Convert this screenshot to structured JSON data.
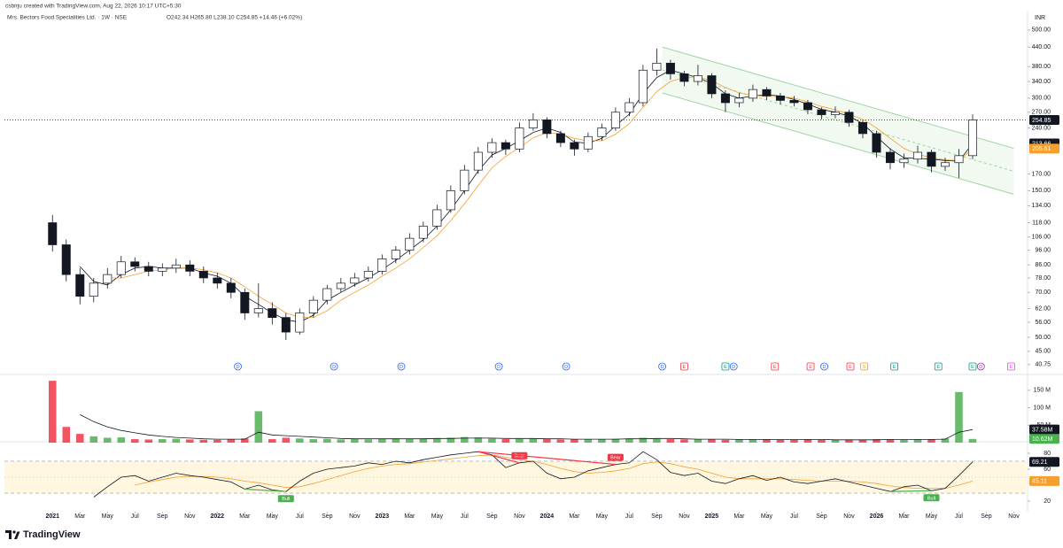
{
  "header": {
    "author": "csbirju created with TradingView.com, Aug 22, 2026 10:17 UTC+5:30",
    "symbol": "Mrs. Bectors Food Specialities Ltd. · 1W · NSE",
    "ohlc": "O242.34 H265.80 L238.10 C254.85 +14.46 (+6.02%)"
  },
  "footer": {
    "brand": "TradingView"
  },
  "chart_data": [
    {
      "type": "candlestick",
      "currency": "INR",
      "log_scale": true,
      "xlim": [
        -3.5,
        71
      ],
      "ylim": [
        38.6,
        541
      ],
      "x": [
        0,
        1,
        2,
        3,
        4,
        5,
        6,
        7,
        8,
        9,
        10,
        11,
        12,
        13,
        14,
        15,
        16,
        17,
        18,
        19,
        20,
        21,
        22,
        23,
        24,
        25,
        26,
        27,
        28,
        29,
        30,
        31,
        32,
        33,
        34,
        35,
        36,
        37,
        38,
        39,
        40,
        41,
        42,
        43,
        44,
        45,
        46,
        47,
        48,
        49,
        50,
        51,
        52,
        53,
        54,
        55,
        56,
        57,
        58,
        59,
        60,
        61,
        62,
        63,
        64,
        65,
        66,
        67
      ],
      "open": [
        118,
        100,
        80,
        68,
        75,
        80,
        88,
        85,
        82,
        84,
        86,
        82,
        78,
        75,
        70,
        60,
        62,
        58,
        52,
        60,
        66,
        72,
        75,
        78,
        82,
        90,
        96,
        105,
        115,
        130,
        150,
        175,
        200,
        215,
        205,
        240,
        255,
        230,
        215,
        205,
        225,
        240,
        270,
        290,
        370,
        390,
        360,
        340,
        355,
        310,
        290,
        300,
        320,
        305,
        295,
        290,
        275,
        265,
        270,
        250,
        230,
        200,
        185,
        190,
        200,
        180,
        185,
        195
      ],
      "high": [
        125,
        104,
        84,
        78,
        84,
        92,
        91,
        88,
        87,
        90,
        89,
        85,
        81,
        78,
        72,
        75,
        65,
        60,
        62,
        68,
        74,
        78,
        81,
        85,
        93,
        99,
        109,
        119,
        135,
        156,
        182,
        208,
        222,
        220,
        250,
        268,
        260,
        235,
        220,
        232,
        248,
        280,
        300,
        385,
        435,
        400,
        368,
        385,
        362,
        318,
        312,
        332,
        326,
        312,
        305,
        296,
        280,
        282,
        275,
        255,
        235,
        206,
        198,
        210,
        204,
        192,
        205,
        265.8
      ],
      "low": [
        95,
        76,
        64,
        65,
        72,
        78,
        82,
        79,
        79,
        81,
        79,
        75,
        72,
        67,
        57,
        58,
        55,
        49,
        51,
        58,
        64,
        70,
        73,
        76,
        80,
        87,
        93,
        102,
        112,
        127,
        146,
        170,
        192,
        196,
        200,
        235,
        222,
        208,
        195,
        200,
        218,
        235,
        262,
        282,
        355,
        345,
        328,
        330,
        300,
        270,
        280,
        292,
        296,
        286,
        282,
        266,
        256,
        258,
        242,
        222,
        192,
        176,
        178,
        184,
        172,
        174,
        165,
        190
      ],
      "close": [
        100,
        80,
        68,
        75,
        80,
        88,
        85,
        82,
        84,
        86,
        82,
        78,
        75,
        70,
        60,
        62,
        58,
        52,
        60,
        66,
        72,
        75,
        78,
        82,
        90,
        96,
        105,
        115,
        130,
        150,
        175,
        200,
        215,
        205,
        240,
        255,
        230,
        215,
        205,
        225,
        240,
        270,
        290,
        370,
        390,
        360,
        340,
        355,
        310,
        290,
        300,
        320,
        305,
        295,
        290,
        275,
        265,
        270,
        250,
        230,
        200,
        185,
        190,
        200,
        180,
        185,
        195,
        254.85
      ],
      "up_color": "#ffffff",
      "down_color": "#131722",
      "border_color": "#131722",
      "last_color": "#131722",
      "series": [
        {
          "color": "#131722",
          "values": [
            null,
            null,
            85,
            76,
            74,
            80,
            84,
            85,
            84,
            84,
            84,
            81,
            79,
            75,
            68,
            64,
            60,
            57,
            56,
            59,
            66,
            70,
            74,
            78,
            83,
            89,
            96,
            104,
            115,
            130,
            150,
            174,
            196,
            206,
            218,
            232,
            240,
            232,
            216,
            214,
            222,
            244,
            266,
            310,
            350,
            370,
            360,
            350,
            335,
            310,
            300,
            305,
            308,
            305,
            297,
            287,
            276,
            270,
            262,
            248,
            225,
            205,
            192,
            191,
            190,
            188,
            187,
            213.66
          ]
        },
        {
          "color": "#f59f2f",
          "values": [
            null,
            null,
            null,
            null,
            78,
            78,
            80,
            82,
            83,
            84,
            84,
            83,
            81,
            78,
            73,
            68,
            64,
            60,
            58,
            58,
            61,
            66,
            70,
            74,
            79,
            84,
            90,
            98,
            107,
            120,
            136,
            156,
            178,
            194,
            207,
            223,
            232,
            229,
            222,
            218,
            218,
            229,
            248,
            280,
            315,
            340,
            350,
            352,
            342,
            325,
            312,
            306,
            304,
            304,
            300,
            292,
            282,
            275,
            266,
            256,
            240,
            222,
            206,
            197,
            192,
            189,
            188,
            205.61
          ]
        }
      ],
      "channel": {
        "color": "#4caf50",
        "x": [
          44.4,
          70
        ],
        "upper": [
          440,
          206
        ],
        "lower": [
          312,
          146
        ]
      },
      "yticks": [
        {
          "value": 500,
          "label": "500.00"
        },
        {
          "value": 440,
          "label": "440.00"
        },
        {
          "value": 380,
          "label": "380.00"
        },
        {
          "value": 340,
          "label": "340.00"
        },
        {
          "value": 300,
          "label": "300.00"
        },
        {
          "value": 270,
          "label": "270.00"
        },
        {
          "value": 240,
          "label": "240.00"
        },
        {
          "value": 170,
          "label": "170.00"
        },
        {
          "value": 150,
          "label": "150.00"
        },
        {
          "value": 134,
          "label": "134.00"
        },
        {
          "value": 118,
          "label": "118.00"
        },
        {
          "value": 106,
          "label": "106.00"
        },
        {
          "value": 96,
          "label": "96.00"
        },
        {
          "value": 86,
          "label": "86.00"
        },
        {
          "value": 78,
          "label": "78.00"
        },
        {
          "value": 70,
          "label": "70.00"
        },
        {
          "value": 62,
          "label": "62.00"
        },
        {
          "value": 56,
          "label": "56.00"
        },
        {
          "value": 50,
          "label": "50.00"
        },
        {
          "value": 45,
          "label": "45.00"
        },
        {
          "value": 40.75,
          "label": "40.75"
        }
      ],
      "xticks": [
        {
          "value": 0,
          "label": "2021"
        },
        {
          "value": 2,
          "label": "Mar"
        },
        {
          "value": 4,
          "label": "May"
        },
        {
          "value": 6,
          "label": "Jul"
        },
        {
          "value": 8,
          "label": "Sep"
        },
        {
          "value": 10,
          "label": "Nov"
        },
        {
          "value": 12,
          "label": "2022"
        },
        {
          "value": 14,
          "label": "Mar"
        },
        {
          "value": 16,
          "label": "May"
        },
        {
          "value": 18,
          "label": "Jul"
        },
        {
          "value": 20,
          "label": "Sep"
        },
        {
          "value": 22,
          "label": "Nov"
        },
        {
          "value": 24,
          "label": "2023"
        },
        {
          "value": 26,
          "label": "Mar"
        },
        {
          "value": 28,
          "label": "May"
        },
        {
          "value": 30,
          "label": "Jul"
        },
        {
          "value": 32,
          "label": "Sep"
        },
        {
          "value": 34,
          "label": "Nov"
        },
        {
          "value": 36,
          "label": "2024"
        },
        {
          "value": 38,
          "label": "Mar"
        },
        {
          "value": 40,
          "label": "May"
        },
        {
          "value": 42,
          "label": "Jul"
        },
        {
          "value": 44,
          "label": "Sep"
        },
        {
          "value": 46,
          "label": "Nov"
        },
        {
          "value": 48,
          "label": "2025"
        },
        {
          "value": 50,
          "label": "Mar"
        },
        {
          "value": 52,
          "label": "May"
        },
        {
          "value": 54,
          "label": "Jul"
        },
        {
          "value": 56,
          "label": "Sep"
        },
        {
          "value": 58,
          "label": "Nov"
        },
        {
          "value": 60,
          "label": "2026"
        },
        {
          "value": 62,
          "label": "Mar"
        },
        {
          "value": 64,
          "label": "May"
        },
        {
          "value": 66,
          "label": "Jul"
        },
        {
          "value": 68,
          "label": "Sep"
        },
        {
          "value": 70,
          "label": "Nov"
        }
      ],
      "events": [
        {
          "x": 13.5,
          "label": "D",
          "color": "#2962ff"
        },
        {
          "x": 20.5,
          "label": "D",
          "color": "#2962ff"
        },
        {
          "x": 25.4,
          "label": "D",
          "color": "#2962ff"
        },
        {
          "x": 32.5,
          "label": "D",
          "color": "#2962ff"
        },
        {
          "x": 37.4,
          "label": "D",
          "color": "#2962ff"
        },
        {
          "x": 44.4,
          "label": "D",
          "color": "#2962ff"
        },
        {
          "x": 46.0,
          "label": "E",
          "color": "#f23645"
        },
        {
          "x": 49.0,
          "label": "E",
          "color": "#089981"
        },
        {
          "x": 49.6,
          "label": "D",
          "color": "#2962ff"
        },
        {
          "x": 52.6,
          "label": "E",
          "color": "#f23645"
        },
        {
          "x": 55.2,
          "label": "E",
          "color": "#f23645"
        },
        {
          "x": 56.2,
          "label": "D",
          "color": "#2962ff"
        },
        {
          "x": 58.1,
          "label": "E",
          "color": "#f23645"
        },
        {
          "x": 59.1,
          "label": "S",
          "color": "#ff9800"
        },
        {
          "x": 61.3,
          "label": "E",
          "color": "#089981"
        },
        {
          "x": 64.5,
          "label": "E",
          "color": "#089981"
        },
        {
          "x": 67.0,
          "label": "E",
          "color": "#089981"
        },
        {
          "x": 67.6,
          "label": "D",
          "color": "#9c27b0"
        },
        {
          "x": 69.8,
          "label": "E",
          "color": "#e040fb"
        }
      ]
    },
    {
      "type": "bar",
      "ylim": [
        0,
        190
      ],
      "up_color": "#4caf50",
      "down_color": "#f23645",
      "values": [
        177,
        45,
        25,
        18,
        14,
        15,
        10,
        9,
        10,
        11,
        9,
        8,
        8,
        9,
        12,
        90,
        10,
        14,
        12,
        10,
        11,
        9,
        10,
        9,
        11,
        12,
        10,
        12,
        13,
        14,
        16,
        15,
        12,
        10,
        11,
        12,
        10,
        9,
        10,
        9,
        10,
        11,
        12,
        14,
        12,
        10,
        9,
        10,
        9,
        8,
        9,
        10,
        9,
        8,
        8,
        9,
        8,
        8,
        9,
        8,
        10,
        9,
        8,
        9,
        10,
        12,
        145,
        10.62
      ],
      "ma": {
        "color": "#131722",
        "values": [
          null,
          null,
          80,
          60,
          45,
          35,
          28,
          22,
          18,
          15,
          13,
          11,
          10,
          10,
          10,
          30,
          22,
          20,
          18,
          16,
          14,
          12,
          11,
          11,
          11,
          11,
          11,
          11,
          12,
          12,
          13,
          13,
          13,
          12,
          12,
          12,
          11,
          11,
          10,
          10,
          10,
          10,
          11,
          11,
          12,
          12,
          11,
          10,
          10,
          10,
          9,
          9,
          9,
          9,
          9,
          9,
          9,
          8,
          8,
          8,
          8,
          9,
          9,
          9,
          9,
          10,
          30,
          37.58
        ]
      },
      "ma_tag": {
        "value": 37.58,
        "label": "37.58M"
      },
      "last_tag": {
        "value": 10.62,
        "label": "10.62M"
      },
      "yticks": [
        {
          "value": 150,
          "label": "150 M"
        },
        {
          "value": 100,
          "label": "100 M"
        },
        {
          "value": 50,
          "label": "50 M"
        }
      ]
    },
    {
      "type": "line",
      "ylim": [
        6.7,
        93.3
      ],
      "levels": [
        70,
        50,
        30
      ],
      "band_color": "#fff7e0",
      "series": [
        {
          "color": "#131722",
          "values": [
            null,
            null,
            null,
            25,
            38,
            50,
            52,
            45,
            50,
            55,
            52,
            50,
            47,
            44,
            35,
            40,
            34,
            32,
            45,
            55,
            60,
            62,
            64,
            68,
            66,
            70,
            68,
            72,
            75,
            78,
            80,
            82,
            78,
            62,
            68,
            70,
            55,
            48,
            50,
            58,
            62,
            66,
            68,
            82,
            72,
            56,
            52,
            55,
            45,
            42,
            48,
            52,
            46,
            50,
            44,
            42,
            45,
            48,
            44,
            40,
            36,
            32,
            38,
            40,
            33,
            36,
            52,
            69.21
          ]
        },
        {
          "color": "#f59f2f",
          "values": [
            null,
            null,
            null,
            null,
            null,
            null,
            40,
            44,
            47,
            50,
            51,
            51,
            50,
            48,
            45,
            43,
            40,
            37,
            38,
            42,
            47,
            52,
            57,
            61,
            64,
            66,
            67,
            69,
            71,
            73,
            75,
            77,
            78,
            75,
            72,
            70,
            66,
            61,
            57,
            55,
            56,
            58,
            61,
            67,
            69,
            67,
            63,
            60,
            55,
            50,
            48,
            48,
            48,
            48,
            47,
            46,
            45,
            45,
            45,
            44,
            42,
            39,
            37,
            36,
            36,
            36,
            40,
            45.11
          ]
        }
      ],
      "divergences": [
        {
          "label": "Bull",
          "color": "#4caf50",
          "x": [
            14,
            17
          ],
          "y": [
            35,
            32
          ]
        },
        {
          "label": "Bear",
          "color": "#f23645",
          "x": [
            31,
            34
          ],
          "y": [
            82,
            68
          ]
        },
        {
          "label": "Bear",
          "color": "#f23645",
          "x": [
            31,
            41
          ],
          "y": [
            82,
            66
          ]
        },
        {
          "label": "Bull",
          "color": "#4caf50",
          "x": [
            61,
            64
          ],
          "y": [
            32,
            33
          ]
        }
      ],
      "yticks": [
        80,
        60,
        20
      ]
    }
  ]
}
